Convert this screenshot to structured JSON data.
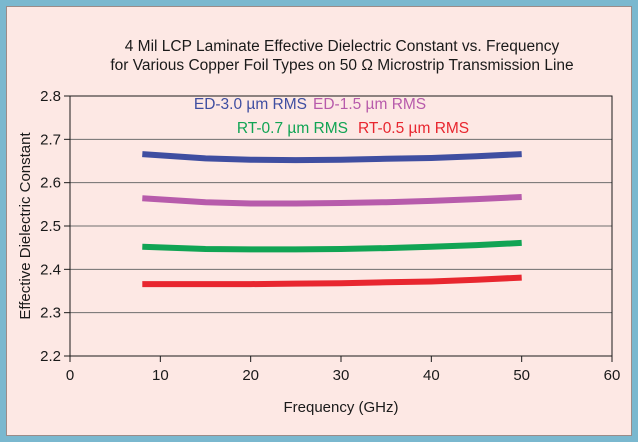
{
  "chart_data": {
    "type": "line",
    "title": "4 Mil LCP Laminate Effective Dielectric Constant vs. Frequency",
    "subtitle": "for Various Copper Foil Types on 50 Ω Microstrip Transmission Line",
    "xlabel": "Frequency (GHz)",
    "ylabel": "Effective Dielectric Constant",
    "xlim": [
      0,
      60
    ],
    "ylim": [
      2.2,
      2.8
    ],
    "x_ticks": [
      "0",
      "10",
      "20",
      "30",
      "40",
      "50",
      "60"
    ],
    "y_ticks": [
      "2.2",
      "2.3",
      "2.4",
      "2.5",
      "2.6",
      "2.7",
      "2.8"
    ],
    "grid": true,
    "legend_placement": "top-center",
    "series": [
      {
        "name": "ED-3.0 µm RMS",
        "color": "#3f4ea1",
        "x": [
          8,
          15,
          20,
          25,
          30,
          35,
          40,
          45,
          50
        ],
        "y": [
          2.666,
          2.656,
          2.653,
          2.652,
          2.653,
          2.655,
          2.657,
          2.661,
          2.666
        ]
      },
      {
        "name": "ED-1.5 µm RMS",
        "color": "#b75bab",
        "x": [
          8,
          15,
          20,
          25,
          30,
          35,
          40,
          45,
          50
        ],
        "y": [
          2.564,
          2.555,
          2.552,
          2.552,
          2.553,
          2.555,
          2.558,
          2.562,
          2.567
        ]
      },
      {
        "name": "RT-0.7 µm RMS",
        "color": "#11a454",
        "x": [
          8,
          15,
          20,
          25,
          30,
          35,
          40,
          45,
          50
        ],
        "y": [
          2.452,
          2.447,
          2.446,
          2.446,
          2.447,
          2.449,
          2.452,
          2.456,
          2.461
        ]
      },
      {
        "name": "RT-0.5 µm RMS",
        "color": "#e8262f",
        "x": [
          8,
          15,
          20,
          25,
          30,
          35,
          40,
          45,
          50
        ],
        "y": [
          2.366,
          2.366,
          2.366,
          2.367,
          2.368,
          2.37,
          2.372,
          2.376,
          2.381
        ]
      }
    ]
  }
}
